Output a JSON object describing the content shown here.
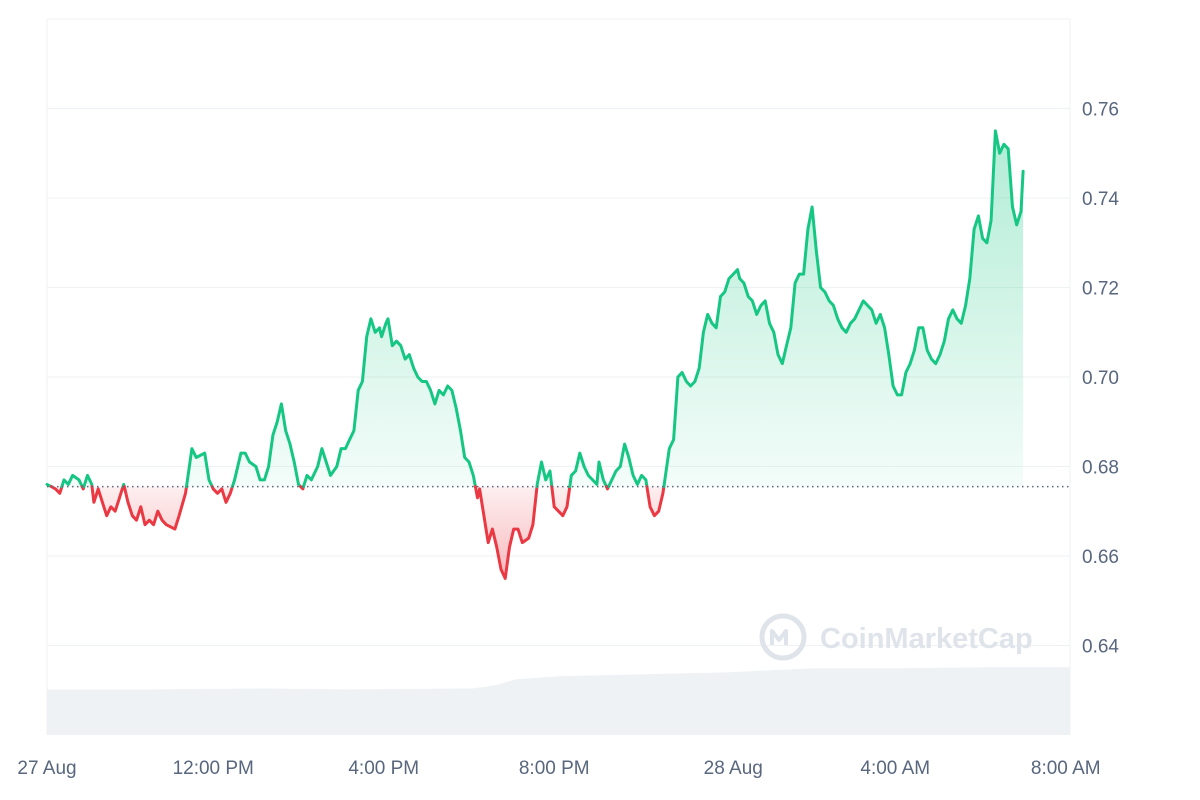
{
  "watermark": {
    "text": "CoinMarketCap",
    "icon": "coinmarketcap-logo-icon"
  },
  "colors": {
    "up": "#16c784",
    "down": "#ea3943",
    "up_fill": "#16c784",
    "down_fill": "#ea3943",
    "volume": "#eff2f5",
    "grid": "#eff2f5",
    "baseline": "#58667e",
    "tick": "#58667e"
  },
  "chart_data": {
    "type": "area",
    "title": "",
    "xlabel": "",
    "ylabel": "",
    "ylim": [
      0.62,
      0.78
    ],
    "yticks": [
      {
        "value": 0.64,
        "label": "0.64"
      },
      {
        "value": 0.66,
        "label": "0.66"
      },
      {
        "value": 0.68,
        "label": "0.68"
      },
      {
        "value": 0.7,
        "label": "0.70"
      },
      {
        "value": 0.72,
        "label": "0.72"
      },
      {
        "value": 0.74,
        "label": "0.74"
      },
      {
        "value": 0.76,
        "label": "0.76"
      }
    ],
    "xlim": [
      0,
      24
    ],
    "xticks": [
      {
        "value": 0,
        "label": "27 Aug"
      },
      {
        "value": 3.9,
        "label": "12:00 PM"
      },
      {
        "value": 7.9,
        "label": "4:00 PM"
      },
      {
        "value": 11.9,
        "label": "8:00 PM"
      },
      {
        "value": 16.1,
        "label": "28 Aug"
      },
      {
        "value": 19.9,
        "label": "4:00 AM"
      },
      {
        "value": 23.9,
        "label": "8:00 AM"
      }
    ],
    "baseline": 0.6755,
    "grid": true,
    "series": [
      {
        "values": [
          [
            0.0,
            0.676
          ],
          [
            0.2,
            0.675
          ],
          [
            0.3,
            0.674
          ],
          [
            0.4,
            0.677
          ],
          [
            0.5,
            0.676
          ],
          [
            0.6,
            0.678
          ],
          [
            0.75,
            0.677
          ],
          [
            0.85,
            0.675
          ],
          [
            0.95,
            0.678
          ],
          [
            1.05,
            0.676
          ],
          [
            1.1,
            0.672
          ],
          [
            1.2,
            0.675
          ],
          [
            1.3,
            0.672
          ],
          [
            1.4,
            0.669
          ],
          [
            1.5,
            0.671
          ],
          [
            1.6,
            0.67
          ],
          [
            1.7,
            0.673
          ],
          [
            1.8,
            0.676
          ],
          [
            1.9,
            0.672
          ],
          [
            2.0,
            0.669
          ],
          [
            2.1,
            0.668
          ],
          [
            2.2,
            0.671
          ],
          [
            2.3,
            0.667
          ],
          [
            2.4,
            0.668
          ],
          [
            2.5,
            0.667
          ],
          [
            2.6,
            0.67
          ],
          [
            2.7,
            0.668
          ],
          [
            2.8,
            0.667
          ],
          [
            3.0,
            0.666
          ],
          [
            3.1,
            0.669
          ],
          [
            3.25,
            0.674
          ],
          [
            3.4,
            0.684
          ],
          [
            3.5,
            0.682
          ],
          [
            3.7,
            0.683
          ],
          [
            3.8,
            0.677
          ],
          [
            3.9,
            0.675
          ],
          [
            4.0,
            0.674
          ],
          [
            4.1,
            0.675
          ],
          [
            4.2,
            0.672
          ],
          [
            4.3,
            0.674
          ],
          [
            4.4,
            0.677
          ],
          [
            4.55,
            0.683
          ],
          [
            4.65,
            0.683
          ],
          [
            4.75,
            0.681
          ],
          [
            4.9,
            0.68
          ],
          [
            5.0,
            0.677
          ],
          [
            5.1,
            0.677
          ],
          [
            5.2,
            0.68
          ],
          [
            5.3,
            0.687
          ],
          [
            5.4,
            0.69
          ],
          [
            5.5,
            0.694
          ],
          [
            5.6,
            0.688
          ],
          [
            5.7,
            0.685
          ],
          [
            5.8,
            0.681
          ],
          [
            5.9,
            0.676
          ],
          [
            6.0,
            0.675
          ],
          [
            6.1,
            0.678
          ],
          [
            6.2,
            0.677
          ],
          [
            6.35,
            0.68
          ],
          [
            6.45,
            0.684
          ],
          [
            6.55,
            0.681
          ],
          [
            6.65,
            0.678
          ],
          [
            6.8,
            0.68
          ],
          [
            6.9,
            0.684
          ],
          [
            7.0,
            0.684
          ],
          [
            7.1,
            0.686
          ],
          [
            7.2,
            0.688
          ],
          [
            7.3,
            0.697
          ],
          [
            7.4,
            0.699
          ],
          [
            7.5,
            0.709
          ],
          [
            7.6,
            0.713
          ],
          [
            7.7,
            0.71
          ],
          [
            7.8,
            0.711
          ],
          [
            7.85,
            0.709
          ],
          [
            7.95,
            0.712
          ],
          [
            8.0,
            0.713
          ],
          [
            8.1,
            0.707
          ],
          [
            8.2,
            0.708
          ],
          [
            8.3,
            0.707
          ],
          [
            8.4,
            0.704
          ],
          [
            8.5,
            0.705
          ],
          [
            8.6,
            0.702
          ],
          [
            8.7,
            0.7
          ],
          [
            8.8,
            0.699
          ],
          [
            8.9,
            0.699
          ],
          [
            9.0,
            0.697
          ],
          [
            9.1,
            0.694
          ],
          [
            9.2,
            0.697
          ],
          [
            9.3,
            0.696
          ],
          [
            9.4,
            0.698
          ],
          [
            9.5,
            0.697
          ],
          [
            9.6,
            0.693
          ],
          [
            9.7,
            0.688
          ],
          [
            9.8,
            0.682
          ],
          [
            9.9,
            0.681
          ],
          [
            10.0,
            0.678
          ],
          [
            10.1,
            0.673
          ],
          [
            10.15,
            0.675
          ],
          [
            10.25,
            0.669
          ],
          [
            10.35,
            0.663
          ],
          [
            10.45,
            0.666
          ],
          [
            10.55,
            0.662
          ],
          [
            10.65,
            0.657
          ],
          [
            10.75,
            0.655
          ],
          [
            10.85,
            0.662
          ],
          [
            10.95,
            0.666
          ],
          [
            11.05,
            0.666
          ],
          [
            11.15,
            0.663
          ],
          [
            11.3,
            0.664
          ],
          [
            11.4,
            0.667
          ],
          [
            11.5,
            0.676
          ],
          [
            11.6,
            0.681
          ],
          [
            11.7,
            0.677
          ],
          [
            11.8,
            0.679
          ],
          [
            11.9,
            0.671
          ],
          [
            12.0,
            0.67
          ],
          [
            12.1,
            0.669
          ],
          [
            12.2,
            0.671
          ],
          [
            12.3,
            0.678
          ],
          [
            12.4,
            0.679
          ],
          [
            12.5,
            0.683
          ],
          [
            12.6,
            0.68
          ],
          [
            12.7,
            0.678
          ],
          [
            12.8,
            0.677
          ],
          [
            12.9,
            0.676
          ],
          [
            12.95,
            0.681
          ],
          [
            13.05,
            0.677
          ],
          [
            13.15,
            0.675
          ],
          [
            13.25,
            0.677
          ],
          [
            13.35,
            0.679
          ],
          [
            13.45,
            0.68
          ],
          [
            13.55,
            0.685
          ],
          [
            13.65,
            0.682
          ],
          [
            13.75,
            0.678
          ],
          [
            13.85,
            0.676
          ],
          [
            13.95,
            0.678
          ],
          [
            14.05,
            0.677
          ],
          [
            14.15,
            0.671
          ],
          [
            14.25,
            0.669
          ],
          [
            14.35,
            0.67
          ],
          [
            14.45,
            0.674
          ],
          [
            14.6,
            0.684
          ],
          [
            14.7,
            0.686
          ],
          [
            14.8,
            0.7
          ],
          [
            14.9,
            0.701
          ],
          [
            15.0,
            0.699
          ],
          [
            15.1,
            0.698
          ],
          [
            15.2,
            0.699
          ],
          [
            15.3,
            0.702
          ],
          [
            15.4,
            0.71
          ],
          [
            15.5,
            0.714
          ],
          [
            15.6,
            0.712
          ],
          [
            15.7,
            0.711
          ],
          [
            15.8,
            0.718
          ],
          [
            15.9,
            0.719
          ],
          [
            16.0,
            0.722
          ],
          [
            16.1,
            0.723
          ],
          [
            16.2,
            0.724
          ],
          [
            16.25,
            0.722
          ],
          [
            16.35,
            0.721
          ],
          [
            16.45,
            0.718
          ],
          [
            16.55,
            0.717
          ],
          [
            16.65,
            0.714
          ],
          [
            16.75,
            0.716
          ],
          [
            16.85,
            0.717
          ],
          [
            16.95,
            0.712
          ],
          [
            17.05,
            0.71
          ],
          [
            17.15,
            0.705
          ],
          [
            17.25,
            0.703
          ],
          [
            17.35,
            0.707
          ],
          [
            17.45,
            0.711
          ],
          [
            17.55,
            0.721
          ],
          [
            17.65,
            0.723
          ],
          [
            17.75,
            0.723
          ],
          [
            17.85,
            0.733
          ],
          [
            17.95,
            0.738
          ],
          [
            18.05,
            0.728
          ],
          [
            18.15,
            0.72
          ],
          [
            18.25,
            0.719
          ],
          [
            18.35,
            0.717
          ],
          [
            18.45,
            0.716
          ],
          [
            18.55,
            0.713
          ],
          [
            18.65,
            0.711
          ],
          [
            18.75,
            0.71
          ],
          [
            18.85,
            0.712
          ],
          [
            18.95,
            0.713
          ],
          [
            19.05,
            0.715
          ],
          [
            19.15,
            0.717
          ],
          [
            19.25,
            0.716
          ],
          [
            19.35,
            0.715
          ],
          [
            19.45,
            0.712
          ],
          [
            19.55,
            0.714
          ],
          [
            19.65,
            0.711
          ],
          [
            19.75,
            0.705
          ],
          [
            19.85,
            0.698
          ],
          [
            19.95,
            0.696
          ],
          [
            20.05,
            0.696
          ],
          [
            20.15,
            0.701
          ],
          [
            20.25,
            0.703
          ],
          [
            20.35,
            0.706
          ],
          [
            20.45,
            0.711
          ],
          [
            20.55,
            0.711
          ],
          [
            20.65,
            0.706
          ],
          [
            20.75,
            0.704
          ],
          [
            20.85,
            0.703
          ],
          [
            20.95,
            0.705
          ],
          [
            21.05,
            0.708
          ],
          [
            21.15,
            0.713
          ],
          [
            21.25,
            0.715
          ],
          [
            21.35,
            0.713
          ],
          [
            21.45,
            0.712
          ],
          [
            21.55,
            0.716
          ],
          [
            21.65,
            0.722
          ],
          [
            21.75,
            0.733
          ],
          [
            21.85,
            0.736
          ],
          [
            21.95,
            0.731
          ],
          [
            22.05,
            0.73
          ],
          [
            22.15,
            0.735
          ],
          [
            22.25,
            0.755
          ],
          [
            22.35,
            0.75
          ],
          [
            22.45,
            0.752
          ],
          [
            22.55,
            0.751
          ],
          [
            22.65,
            0.738
          ],
          [
            22.75,
            0.734
          ],
          [
            22.85,
            0.737
          ],
          [
            22.9,
            0.746
          ]
        ]
      }
    ],
    "volume": {
      "values": [
        [
          0.0,
          0.45
        ],
        [
          2.5,
          0.45
        ],
        [
          5.0,
          0.46
        ],
        [
          7.0,
          0.45
        ],
        [
          10.0,
          0.46
        ],
        [
          10.5,
          0.49
        ],
        [
          11.0,
          0.55
        ],
        [
          12.0,
          0.58
        ],
        [
          14.0,
          0.6
        ],
        [
          16.0,
          0.62
        ],
        [
          18.0,
          0.66
        ],
        [
          20.0,
          0.66
        ],
        [
          22.0,
          0.67
        ],
        [
          22.9,
          0.67
        ]
      ]
    }
  }
}
